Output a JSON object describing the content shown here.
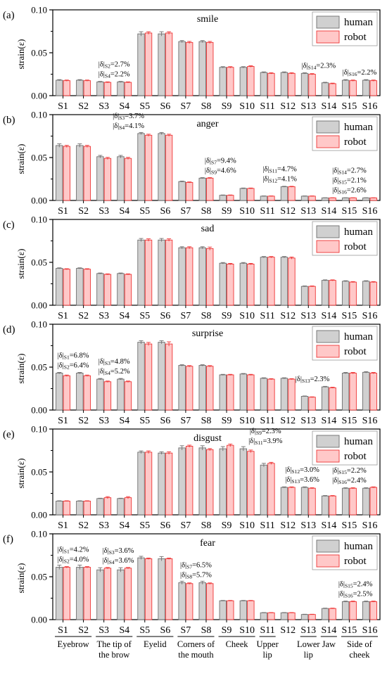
{
  "chart_data": {
    "type": "bar",
    "ylabel": "strain(ε)",
    "ylim": [
      0,
      0.1
    ],
    "yticks": [
      "0.00",
      "0.05",
      "0.10"
    ],
    "legend": [
      "human",
      "robot"
    ],
    "legend_position": "top-right",
    "colors": {
      "human": "#d0d0d0",
      "robot": "#ffc8c8",
      "human_edge": "#6e6e6e",
      "robot_edge": "#ee3535"
    },
    "categories": [
      "S1",
      "S2",
      "S3",
      "S4",
      "S5",
      "S6",
      "S7",
      "S8",
      "S9",
      "S10",
      "S11",
      "S12",
      "S13",
      "S14",
      "S15",
      "S16"
    ],
    "group_labels": [
      {
        "lines": [
          "Eyebrow"
        ],
        "from": 1,
        "to": 2
      },
      {
        "lines": [
          "The tip of",
          "the brow"
        ],
        "from": 3,
        "to": 4
      },
      {
        "lines": [
          "Eyelid"
        ],
        "from": 5,
        "to": 6
      },
      {
        "lines": [
          "Corners of",
          "the mouth"
        ],
        "from": 7,
        "to": 8
      },
      {
        "lines": [
          "Cheek"
        ],
        "from": 9,
        "to": 10
      },
      {
        "lines": [
          "Upper",
          "lip"
        ],
        "from": 11,
        "to": 11
      },
      {
        "lines": [
          "Lower",
          "lip"
        ],
        "from": 13,
        "to": 13
      },
      {
        "lines": [
          "Jaw"
        ],
        "from": 14,
        "to": 14
      },
      {
        "lines": [
          "Side of",
          "cheek"
        ],
        "from": 15,
        "to": 16
      }
    ],
    "panels": [
      {
        "letter": "(a)",
        "title": "smile",
        "series": [
          {
            "name": "human",
            "values": [
              0.018,
              0.018,
              0.016,
              0.016,
              0.072,
              0.072,
              0.063,
              0.063,
              0.033,
              0.033,
              0.027,
              0.027,
              0.026,
              0.015,
              0.018,
              0.018
            ],
            "errors": [
              0.0007,
              0.0007,
              0.0006,
              0.0006,
              0.0025,
              0.0025,
              0.0012,
              0.0012,
              0.0008,
              0.0008,
              0.0007,
              0.0007,
              0.0007,
              0.0006,
              0.0007,
              0.0007
            ]
          },
          {
            "name": "robot",
            "values": [
              0.0175,
              0.0175,
              0.0155,
              0.0155,
              0.073,
              0.073,
              0.062,
              0.062,
              0.033,
              0.034,
              0.026,
              0.026,
              0.025,
              0.014,
              0.0175,
              0.0175
            ],
            "errors": [
              0.0007,
              0.0007,
              0.0006,
              0.0006,
              0.0015,
              0.0015,
              0.0012,
              0.0012,
              0.0008,
              0.0008,
              0.0007,
              0.0007,
              0.0007,
              0.0006,
              0.0007,
              0.0007
            ]
          }
        ],
        "annotations": [
          {
            "lines": [
              "|δ|S2=2.7%",
              "|δ|S4=2.2%"
            ],
            "at": 3.5
          },
          {
            "lines": [
              "|δ|S14=2.3%"
            ],
            "at": 13.5
          },
          {
            "lines": [
              "|δ|S16=2.2%"
            ],
            "at": 15.5
          }
        ]
      },
      {
        "letter": "(b)",
        "title": "anger",
        "series": [
          {
            "name": "human",
            "values": [
              0.064,
              0.064,
              0.051,
              0.051,
              0.078,
              0.078,
              0.022,
              0.026,
              0.006,
              0.014,
              0.005,
              0.016,
              0.005,
              0.003,
              0.003,
              0.003
            ],
            "errors": [
              0.002,
              0.002,
              0.0015,
              0.0015,
              0.0012,
              0.0012,
              0.0006,
              0.0006,
              0.0004,
              0.0005,
              0.0003,
              0.0005,
              0.0003,
              0.0002,
              0.0002,
              0.0002
            ]
          },
          {
            "name": "robot",
            "values": [
              0.063,
              0.063,
              0.049,
              0.049,
              0.076,
              0.076,
              0.021,
              0.026,
              0.006,
              0.014,
              0.005,
              0.016,
              0.005,
              0.003,
              0.003,
              0.003
            ],
            "errors": [
              0.0012,
              0.0012,
              0.0012,
              0.0012,
              0.0012,
              0.0012,
              0.0006,
              0.0006,
              0.0004,
              0.0005,
              0.0003,
              0.0005,
              0.0003,
              0.0002,
              0.0002,
              0.0002
            ]
          }
        ],
        "annotations": [
          {
            "lines": [
              "|δ|S3=3.7%",
              "|δ|S4=4.1%"
            ],
            "at": 4.2
          },
          {
            "lines": [
              "|δ|S7=9.4%",
              "|δ|S9=4.6%"
            ],
            "at": 8.7
          },
          {
            "lines": [
              "|δ|S11=4.7%",
              "|δ|S12=4.1%"
            ],
            "at": 11.6
          },
          {
            "lines": [
              "|δ|S14=2.7%",
              "|δ|S15=2.1%",
              "|δ|S16=2.6%"
            ],
            "at": 15.0
          }
        ]
      },
      {
        "letter": "(c)",
        "title": "sad",
        "series": [
          {
            "name": "human",
            "values": [
              0.043,
              0.043,
              0.037,
              0.037,
              0.076,
              0.076,
              0.067,
              0.067,
              0.049,
              0.049,
              0.056,
              0.056,
              0.022,
              0.029,
              0.028,
              0.028
            ],
            "errors": [
              0.0006,
              0.0006,
              0.0006,
              0.0006,
              0.0018,
              0.0018,
              0.0012,
              0.0012,
              0.0008,
              0.0008,
              0.0008,
              0.0008,
              0.0005,
              0.0006,
              0.0006,
              0.0006
            ]
          },
          {
            "name": "robot",
            "values": [
              0.042,
              0.042,
              0.036,
              0.036,
              0.076,
              0.076,
              0.067,
              0.066,
              0.048,
              0.048,
              0.056,
              0.055,
              0.022,
              0.029,
              0.027,
              0.027
            ],
            "errors": [
              0.0006,
              0.0006,
              0.0006,
              0.0006,
              0.0014,
              0.0014,
              0.0012,
              0.0018,
              0.0008,
              0.0008,
              0.0008,
              0.0012,
              0.0005,
              0.0006,
              0.0006,
              0.0006
            ]
          }
        ],
        "annotations": []
      },
      {
        "letter": "(d)",
        "title": "surprise",
        "series": [
          {
            "name": "human",
            "values": [
              0.043,
              0.043,
              0.036,
              0.036,
              0.079,
              0.079,
              0.052,
              0.052,
              0.041,
              0.042,
              0.037,
              0.037,
              0.016,
              0.027,
              0.043,
              0.044
            ],
            "errors": [
              0.0008,
              0.0008,
              0.0008,
              0.0008,
              0.0018,
              0.0018,
              0.0008,
              0.0008,
              0.0006,
              0.0006,
              0.0006,
              0.0006,
              0.0004,
              0.0006,
              0.0008,
              0.0008
            ]
          },
          {
            "name": "robot",
            "values": [
              0.04,
              0.04,
              0.033,
              0.033,
              0.077,
              0.077,
              0.051,
              0.051,
              0.041,
              0.041,
              0.036,
              0.036,
              0.015,
              0.026,
              0.043,
              0.043
            ],
            "errors": [
              0.0008,
              0.0008,
              0.0008,
              0.0008,
              0.0018,
              0.0025,
              0.0008,
              0.0008,
              0.0006,
              0.0006,
              0.0006,
              0.0006,
              0.0004,
              0.0006,
              0.0008,
              0.0008
            ]
          }
        ],
        "annotations": [
          {
            "lines": [
              "|δ|S1=6.8%",
              "|δ|S2=6.4%"
            ],
            "at": 1.5
          },
          {
            "lines": [
              "|δ|S3=4.8%",
              "|δ|S4=5.2%"
            ],
            "at": 3.5
          },
          {
            "lines": [
              "|δ|S13=2.3%"
            ],
            "at": 13.2
          }
        ]
      },
      {
        "letter": "(e)",
        "title": "disgust",
        "series": [
          {
            "name": "human",
            "values": [
              0.016,
              0.016,
              0.019,
              0.019,
              0.073,
              0.072,
              0.078,
              0.078,
              0.077,
              0.077,
              0.058,
              0.032,
              0.032,
              0.022,
              0.031,
              0.031
            ],
            "errors": [
              0.0004,
              0.0004,
              0.0004,
              0.0004,
              0.0015,
              0.0015,
              0.0025,
              0.0025,
              0.0025,
              0.0025,
              0.002,
              0.0006,
              0.0006,
              0.0005,
              0.0006,
              0.0006
            ]
          },
          {
            "name": "robot",
            "values": [
              0.016,
              0.016,
              0.02,
              0.02,
              0.073,
              0.072,
              0.08,
              0.076,
              0.081,
              0.074,
              0.06,
              0.032,
              0.031,
              0.022,
              0.031,
              0.032
            ],
            "errors": [
              0.0004,
              0.0004,
              0.0012,
              0.0012,
              0.0015,
              0.0015,
              0.0012,
              0.0012,
              0.0015,
              0.0015,
              0.0012,
              0.0006,
              0.0006,
              0.0005,
              0.0006,
              0.0006
            ]
          }
        ],
        "annotations": [
          {
            "lines": [
              "|δ|S9=2.3%",
              "|δ|S11=3.9%"
            ],
            "at": 10.9
          },
          {
            "lines": [
              "|δ|S12=3.0%",
              "|δ|S13=3.6%"
            ],
            "at": 12.7
          },
          {
            "lines": [
              "|δ|S15=2.2%",
              "|δ|S16=2.4%"
            ],
            "at": 15.0
          }
        ]
      },
      {
        "letter": "(f)",
        "title": "fear",
        "series": [
          {
            "name": "human",
            "values": [
              0.061,
              0.061,
              0.058,
              0.058,
              0.072,
              0.071,
              0.043,
              0.043,
              0.022,
              0.022,
              0.008,
              0.008,
              0.006,
              0.013,
              0.021,
              0.021
            ],
            "errors": [
              0.0025,
              0.0025,
              0.0025,
              0.0025,
              0.0018,
              0.0025,
              0.0018,
              0.0018,
              0.0004,
              0.0004,
              0.0003,
              0.0003,
              0.0003,
              0.0004,
              0.0006,
              0.0006
            ]
          },
          {
            "name": "robot",
            "values": [
              0.061,
              0.061,
              0.06,
              0.06,
              0.071,
              0.071,
              0.042,
              0.042,
              0.022,
              0.022,
              0.008,
              0.008,
              0.006,
              0.013,
              0.021,
              0.021
            ],
            "errors": [
              0.0008,
              0.0008,
              0.0008,
              0.0008,
              0.0008,
              0.0008,
              0.0008,
              0.0008,
              0.0004,
              0.0004,
              0.0003,
              0.0003,
              0.0003,
              0.0004,
              0.0006,
              0.0006
            ]
          }
        ],
        "annotations": [
          {
            "lines": [
              "|δ|S1=4.2%",
              "|δ|S2=4.0%"
            ],
            "at": 1.5
          },
          {
            "lines": [
              "|δ|S3=3.6%",
              "|δ|S4=3.6%"
            ],
            "at": 3.7
          },
          {
            "lines": [
              "|δ|S7=6.5%",
              "|δ|S8=5.7%"
            ],
            "at": 7.5
          },
          {
            "lines": [
              "|δ|S15=2.4%",
              "|δ|S16=2.5%"
            ],
            "at": 15.3
          }
        ]
      }
    ]
  }
}
